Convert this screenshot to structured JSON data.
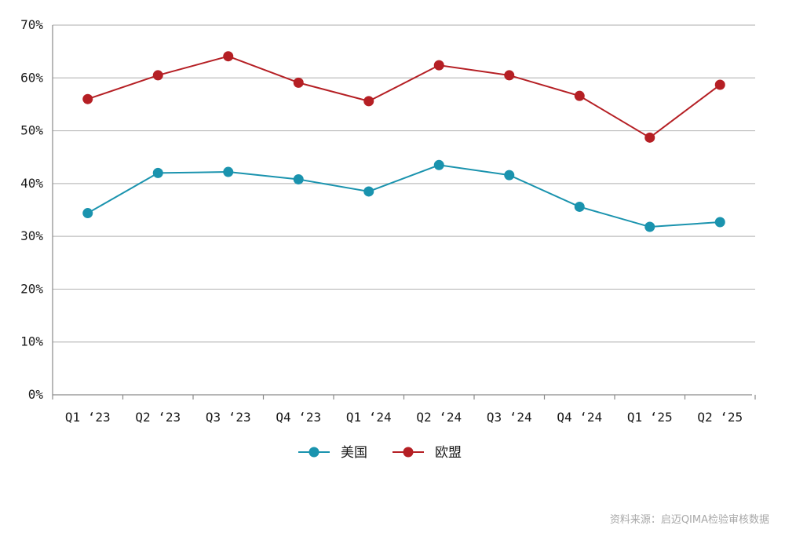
{
  "chart_data": {
    "type": "line",
    "categories": [
      "Q1 ‘23",
      "Q2 ‘23",
      "Q3 ‘23",
      "Q4 ‘23",
      "Q1 ‘24",
      "Q2 ‘24",
      "Q3 ‘24",
      "Q4 ‘24",
      "Q1 ‘25",
      "Q2 ‘25"
    ],
    "series": [
      {
        "name": "美国",
        "color": "#1a93ae",
        "values": [
          34.4,
          42.0,
          42.2,
          40.8,
          38.5,
          43.5,
          41.6,
          35.6,
          31.8,
          32.7
        ]
      },
      {
        "name": "欧盟",
        "color": "#b51f24",
        "values": [
          56.0,
          60.5,
          64.1,
          59.1,
          55.6,
          62.4,
          60.5,
          56.6,
          48.7,
          58.7
        ]
      }
    ],
    "ylim": [
      0,
      70
    ],
    "yticks": [
      "0%",
      "10%",
      "20%",
      "30%",
      "40%",
      "50%",
      "60%",
      "70%"
    ],
    "grid": true,
    "legend_position": "bottom-center"
  },
  "source_note": "资料来源：启迈QIMA检验审核数据"
}
